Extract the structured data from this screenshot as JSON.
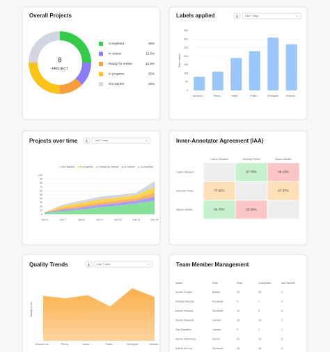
{
  "overall": {
    "type": "donut",
    "title": "Overall Projects",
    "center_value": "8",
    "center_label": "PROJECT",
    "categories": [
      "Completed",
      "In review",
      "Ready for review",
      "In progress",
      "Not started"
    ],
    "values": [
      25,
      12.5,
      12.5,
      25,
      25
    ],
    "value_labels": [
      "25%",
      "12.5%",
      "12.5%",
      "25%",
      "25%"
    ],
    "colors": [
      "#33cc4a",
      "#8b7cf6",
      "#f59e3b",
      "#fcc419",
      "#d3d6e0"
    ]
  },
  "labels_applied": {
    "type": "bar",
    "title": "Labels applied",
    "filter": "Last 7 days",
    "ylabel": "Total Labels",
    "categories": [
      "Around L...",
      "Percy...",
      "Maze ...",
      "Potter...",
      "Divergent",
      "Holmes..."
    ],
    "values": [
      80,
      110,
      190,
      230,
      310,
      270
    ],
    "color": "#9cc6f8",
    "ylim": [
      0,
      350
    ],
    "yticks": [
      0,
      50,
      100,
      150,
      200,
      250,
      300,
      350
    ],
    "grid": true
  },
  "projects_over_time": {
    "type": "stacked_area",
    "title": "Projects over time",
    "filter": "Last 7 days",
    "categories": [
      "Jun 6",
      "Jun 7",
      "Jun 8",
      "Jun 9",
      "Jun 10",
      "Jun 11",
      "Jun 12"
    ],
    "series": [
      {
        "name": "Not started",
        "color": "#d3d6e0",
        "values": [
          0,
          4,
          6,
          7,
          7,
          6,
          15
        ]
      },
      {
        "name": "In progress",
        "color": "#fcd34d",
        "values": [
          0,
          5,
          7,
          8,
          8,
          8,
          15
        ]
      },
      {
        "name": "Ready for review",
        "color": "#f9b067",
        "values": [
          1,
          4,
          5,
          6,
          6,
          6,
          10
        ]
      },
      {
        "name": "In review",
        "color": "#a99cf8",
        "values": [
          1,
          4,
          5,
          6,
          7,
          7,
          10
        ]
      },
      {
        "name": "Completed",
        "color": "#86e09a",
        "values": [
          3,
          8,
          12,
          18,
          22,
          28,
          35
        ]
      }
    ],
    "ylim": [
      0,
      100
    ],
    "yticks": [
      0,
      10,
      20,
      30,
      40,
      50,
      60,
      70,
      80,
      90,
      100
    ],
    "grid": true
  },
  "iaa": {
    "type": "matrix",
    "title": "Inner-Annotator Agreement (IAA)",
    "names": [
      "Calvin Steward",
      "Serenity Fisher",
      "Mason Medlin"
    ],
    "values": [
      [
        null,
        87.79,
        49.13
      ],
      [
        77.02,
        null,
        67.37
      ],
      [
        94.76,
        53.68,
        null
      ]
    ],
    "value_labels": [
      [
        null,
        "87.79%",
        "49.13%"
      ],
      [
        "77.02%",
        null,
        "67.37%"
      ],
      [
        "94.76%",
        "53.68%",
        null
      ]
    ]
  },
  "quality_trends": {
    "type": "area",
    "title": "Quality Trends",
    "filter": "Last 7 days",
    "ylabel": "Quality score",
    "categories": [
      "Around the...",
      "Percy...",
      "Maze ...",
      "Potter...",
      "Divergent",
      "Holmes..."
    ],
    "values": [
      72,
      68,
      73,
      55,
      84,
      70
    ],
    "color": "#fbb04c",
    "ylim": [
      0,
      100
    ]
  },
  "team": {
    "title": "Team Member Management",
    "columns": [
      "Name",
      "Role",
      "Role",
      "Completed",
      "Not Started"
    ],
    "rows": [
      [
        "Kevan Cooper",
        "Admin",
        "29",
        "29",
        "0"
      ],
      [
        "Kathryn Murphy",
        "Reviewer",
        "9",
        "7",
        "3"
      ],
      [
        "Esther Howard",
        "Reviewer",
        "12",
        "9",
        "3"
      ],
      [
        "Darrell Steward",
        "Labeler",
        "16",
        "14",
        "2"
      ],
      [
        "Guy Hawkins",
        "Labeler",
        "3",
        "1",
        "1"
      ],
      [
        "Marvin McKinney",
        "Admin",
        "22",
        "16",
        "6"
      ],
      [
        "Arlene McCoy",
        "Reviewer",
        "18",
        "15",
        "3"
      ]
    ]
  }
}
